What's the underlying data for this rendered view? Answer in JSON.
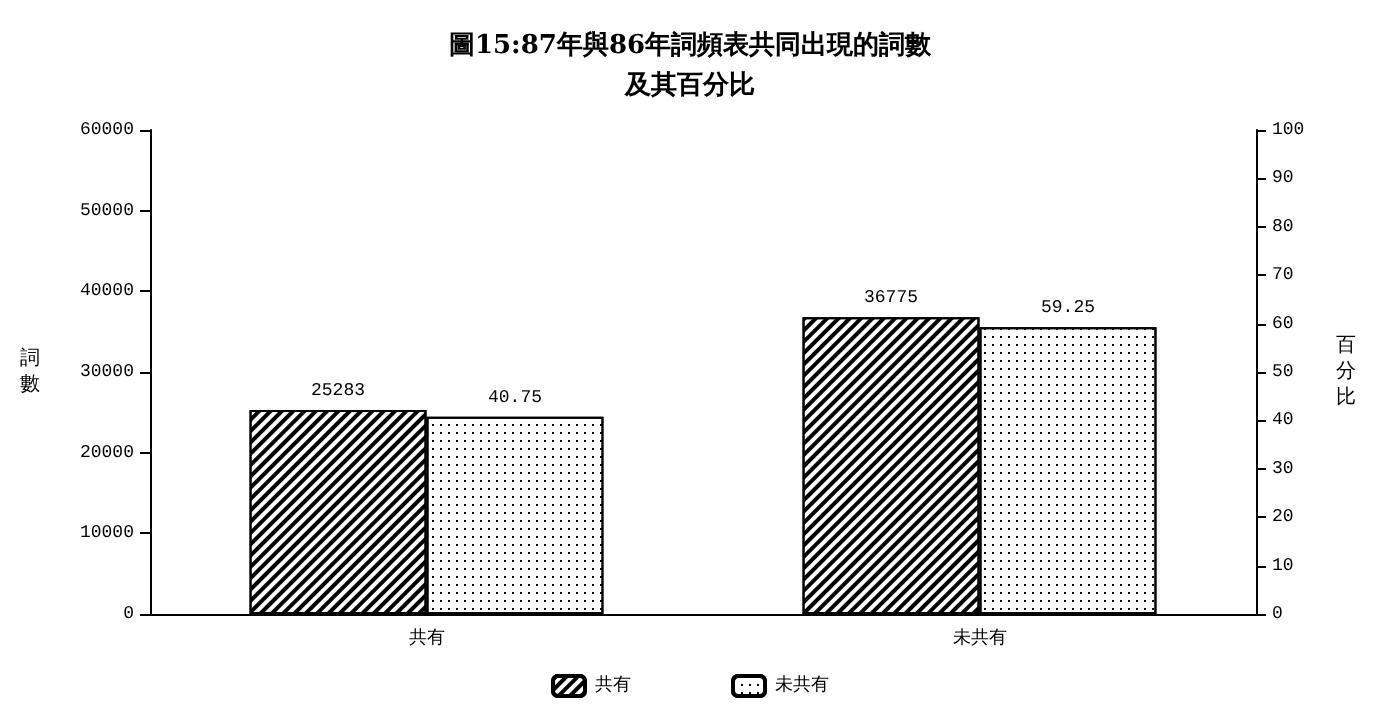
{
  "chart_data": {
    "type": "bar",
    "title": "圖15:87年與86年詞頻表共同出現的詞數及其百分比",
    "ylabel": "詞數",
    "y2label": "百分比",
    "categories": [
      "共有",
      "未共有"
    ],
    "series": [
      {
        "name": "共有",
        "color": "#000000",
        "values": [
          25283,
          36775
        ]
      },
      {
        "name": "未共有",
        "color": "#000000",
        "values": [
          40.75,
          59.25
        ],
        "axis": "y2"
      }
    ],
    "ylim": [
      0,
      60000
    ],
    "yticks": [
      0,
      10000,
      20000,
      30000,
      40000,
      50000,
      60000
    ],
    "y2lim": [
      0,
      100
    ],
    "y2ticks": [
      0,
      10,
      20,
      30,
      40,
      50,
      60,
      70,
      80,
      90,
      100
    ],
    "data_labels": true,
    "grid": false,
    "legend": "bottom"
  }
}
